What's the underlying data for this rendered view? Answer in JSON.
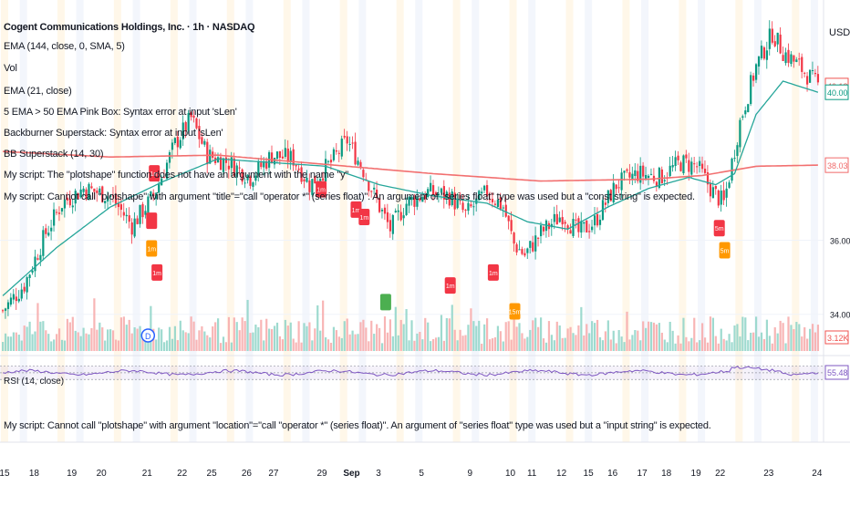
{
  "legend": {
    "title": "Cogent Communications Holdings, Inc. · 1h · NASDAQ",
    "lines": [
      "EMA (144, close, 0, SMA, 5)",
      "Vol",
      "EMA (21, close)",
      "5 EMA > 50 EMA Pink Box: Syntax error at input 'sLen'",
      "Backburner Superstack: Syntax error at input 'sLen'",
      "BB Superstack (14, 30)",
      "My script: The \"plotshape\" function does not have an argument with the name \"y\"",
      "My script: Cannot call \"plotshape\" with argument \"title\"=\"call \"operator *\" (series float)\". An argument of \"series float\" type was used but a \"const string\" is expected."
    ],
    "rsi": "RSI (14, close)",
    "error_bottom": "My script: Cannot call \"plotshape\" with argument \"location\"=\"call \"operator *\" (series float)\". An argument of \"series float\" type was used but a \"input string\" is expected."
  },
  "price_axis": {
    "currency": "USD",
    "ticks": [
      "36.00",
      "34.00"
    ],
    "badges": [
      {
        "text": "40.18",
        "value": 40.18,
        "color": "#ef5350"
      },
      {
        "text": "40.00",
        "value": 40.0,
        "color": "#089981"
      },
      {
        "text": "38.03",
        "value": 38.03,
        "color": "#f06a6a"
      }
    ],
    "vol_badge": {
      "text": "3.12K",
      "color": "#ef5350"
    },
    "rsi_badge": {
      "text": "55.48",
      "color": "#7e57c2"
    }
  },
  "time_axis": {
    "labels": [
      {
        "i": 1,
        "t": "15"
      },
      {
        "i": 12,
        "t": "18"
      },
      {
        "i": 26,
        "t": "19"
      },
      {
        "i": 37,
        "t": "20"
      },
      {
        "i": 54,
        "t": "21"
      },
      {
        "i": 67,
        "t": "22"
      },
      {
        "i": 78,
        "t": "25"
      },
      {
        "i": 91,
        "t": "26"
      },
      {
        "i": 101,
        "t": "27"
      },
      {
        "i": 119,
        "t": "29"
      },
      {
        "i": 130,
        "t": "Sep"
      },
      {
        "i": 140,
        "t": "3"
      },
      {
        "i": 156,
        "t": "5"
      },
      {
        "i": 174,
        "t": "9"
      },
      {
        "i": 189,
        "t": "10"
      },
      {
        "i": 197,
        "t": "11"
      },
      {
        "i": 208,
        "t": "12"
      },
      {
        "i": 218,
        "t": "15"
      },
      {
        "i": 227,
        "t": "16"
      },
      {
        "i": 238,
        "t": "17"
      },
      {
        "i": 247,
        "t": "18"
      },
      {
        "i": 258,
        "t": "19"
      },
      {
        "i": 267,
        "t": "22"
      },
      {
        "i": 285,
        "t": "23"
      },
      {
        "i": 303,
        "t": "24"
      }
    ]
  },
  "markers": [
    {
      "i": 56,
      "price": 38.03,
      "label": "1m",
      "kind": "pink"
    },
    {
      "i": 55,
      "price": 36.75,
      "label": "",
      "kind": "pink"
    },
    {
      "i": 118,
      "price": 37.6,
      "label": "1m",
      "kind": "pink"
    },
    {
      "i": 131,
      "price": 37.05,
      "label": "1m",
      "kind": "pink"
    },
    {
      "i": 134,
      "price": 36.85,
      "label": "1m",
      "kind": "pink"
    },
    {
      "i": 55,
      "price": 36.0,
      "label": "1m",
      "kind": "orange"
    },
    {
      "i": 57,
      "price": 35.35,
      "label": "1m",
      "kind": "pink"
    },
    {
      "i": 166,
      "price": 35.0,
      "label": "1m",
      "kind": "pink"
    },
    {
      "i": 142,
      "price": 34.55,
      "label": "",
      "kind": "green"
    },
    {
      "i": 182,
      "price": 35.35,
      "label": "1m",
      "kind": "pink"
    },
    {
      "i": 190,
      "price": 34.3,
      "label": "15m",
      "kind": "orange"
    },
    {
      "i": 266,
      "price": 36.55,
      "label": "5m",
      "kind": "pink"
    },
    {
      "i": 268,
      "price": 35.95,
      "label": "5m",
      "kind": "orange"
    }
  ],
  "event_badge": {
    "i": 54,
    "label": "D"
  },
  "chart_data": {
    "type": "candlestick",
    "interval": "1h",
    "n_bars": 304,
    "ema_21_color": "#26a69a",
    "ema_144_color": "#f27070",
    "ylim": [
      33.5,
      42.0
    ],
    "anchors": [
      [
        0,
        34.1
      ],
      [
        8,
        34.8
      ],
      [
        16,
        36.2
      ],
      [
        22,
        37.0
      ],
      [
        30,
        37.4
      ],
      [
        40,
        37.2
      ],
      [
        48,
        36.4
      ],
      [
        56,
        37.2
      ],
      [
        64,
        38.6
      ],
      [
        70,
        39.3
      ],
      [
        76,
        38.3
      ],
      [
        84,
        38.1
      ],
      [
        92,
        37.7
      ],
      [
        100,
        38.3
      ],
      [
        108,
        38.2
      ],
      [
        114,
        37.5
      ],
      [
        122,
        38.1
      ],
      [
        128,
        38.7
      ],
      [
        134,
        37.9
      ],
      [
        140,
        36.9
      ],
      [
        144,
        36.3
      ],
      [
        150,
        37.0
      ],
      [
        158,
        37.3
      ],
      [
        166,
        37.2
      ],
      [
        172,
        36.7
      ],
      [
        180,
        37.3
      ],
      [
        186,
        36.9
      ],
      [
        190,
        35.9
      ],
      [
        194,
        35.6
      ],
      [
        200,
        36.2
      ],
      [
        208,
        36.7
      ],
      [
        214,
        36.2
      ],
      [
        220,
        36.5
      ],
      [
        228,
        37.5
      ],
      [
        236,
        37.8
      ],
      [
        244,
        37.7
      ],
      [
        252,
        38.1
      ],
      [
        258,
        38.0
      ],
      [
        264,
        37.3
      ],
      [
        268,
        37.0
      ],
      [
        274,
        39.2
      ],
      [
        280,
        40.7
      ],
      [
        286,
        41.6
      ],
      [
        290,
        41.1
      ],
      [
        296,
        40.7
      ],
      [
        303,
        40.18
      ]
    ],
    "ema144_anchors": [
      [
        0,
        38.4
      ],
      [
        40,
        38.25
      ],
      [
        80,
        38.3
      ],
      [
        120,
        38.05
      ],
      [
        160,
        37.8
      ],
      [
        200,
        37.6
      ],
      [
        240,
        37.65
      ],
      [
        260,
        37.75
      ],
      [
        280,
        38.0
      ],
      [
        303,
        38.03
      ]
    ],
    "ema21_anchors": [
      [
        0,
        34.5
      ],
      [
        20,
        35.8
      ],
      [
        40,
        36.9
      ],
      [
        60,
        37.6
      ],
      [
        80,
        38.2
      ],
      [
        100,
        38.1
      ],
      [
        120,
        38.0
      ],
      [
        140,
        37.5
      ],
      [
        160,
        37.2
      ],
      [
        180,
        37.0
      ],
      [
        195,
        36.5
      ],
      [
        210,
        36.3
      ],
      [
        225,
        36.9
      ],
      [
        240,
        37.4
      ],
      [
        255,
        37.7
      ],
      [
        265,
        37.5
      ],
      [
        272,
        37.8
      ],
      [
        280,
        39.4
      ],
      [
        290,
        40.3
      ],
      [
        303,
        40.0
      ]
    ],
    "rsi": {
      "levels": [
        70,
        50,
        30
      ],
      "last": 55.48
    }
  }
}
